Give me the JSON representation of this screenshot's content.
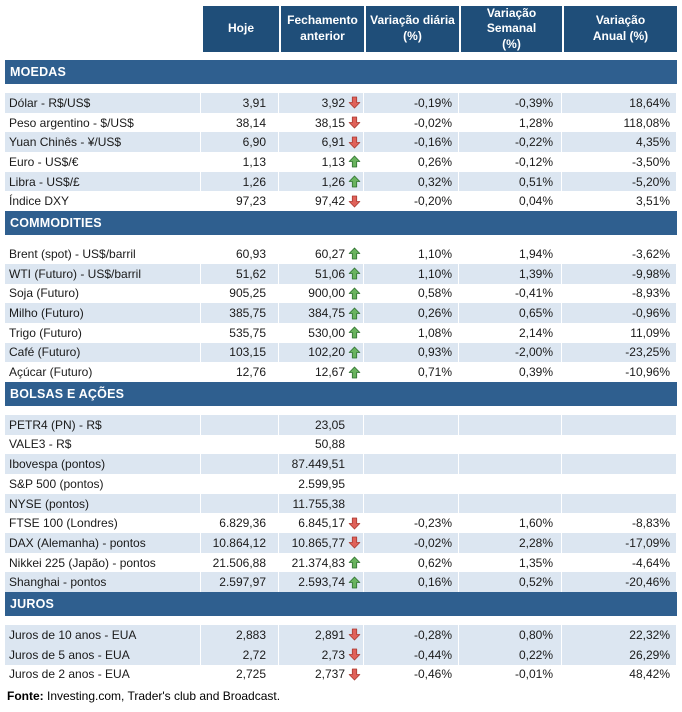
{
  "header": {
    "columns": [
      {
        "label": "Hoje"
      },
      {
        "label": "Fechamento\nanterior"
      },
      {
        "label": "Variação diária\n(%)"
      },
      {
        "label": "Variação Semanal\n(%)"
      },
      {
        "label": "Variação\nAnual (%)"
      }
    ]
  },
  "colors": {
    "header_bg": "#1F4E79",
    "section_bg": "#2F5F8F",
    "row_alt_bg": "#DCE6F1",
    "up_arrow": "#69B35E",
    "up_arrow_border": "#2E7031",
    "down_arrow": "#E0625A",
    "down_arrow_border": "#A93A32"
  },
  "sections": [
    {
      "title": "MOEDAS",
      "rows": [
        {
          "label": "Dólar - R$/US$",
          "hoje": "3,91",
          "fechamento": "3,92",
          "arrow": "down",
          "diaria": "-0,19%",
          "semanal": "-0,39%",
          "anual": "18,64%",
          "shaded": true
        },
        {
          "label": "Peso argentino - $/US$",
          "hoje": "38,14",
          "fechamento": "38,15",
          "arrow": "down",
          "diaria": "-0,02%",
          "semanal": "1,28%",
          "anual": "118,08%",
          "shaded": false
        },
        {
          "label": "Yuan Chinês - ¥/US$",
          "hoje": "6,90",
          "fechamento": "6,91",
          "arrow": "down",
          "diaria": "-0,16%",
          "semanal": "-0,22%",
          "anual": "4,35%",
          "shaded": true
        },
        {
          "label": "Euro - US$/€",
          "hoje": "1,13",
          "fechamento": "1,13",
          "arrow": "up",
          "diaria": "0,26%",
          "semanal": "-0,12%",
          "anual": "-3,50%",
          "shaded": false
        },
        {
          "label": "Libra - US$/£",
          "hoje": "1,26",
          "fechamento": "1,26",
          "arrow": "up",
          "diaria": "0,32%",
          "semanal": "0,51%",
          "anual": "-5,20%",
          "shaded": true
        },
        {
          "label": "Índice DXY",
          "hoje": "97,23",
          "fechamento": "97,42",
          "arrow": "down",
          "diaria": "-0,20%",
          "semanal": "0,04%",
          "anual": "3,51%",
          "shaded": false
        }
      ]
    },
    {
      "title": "COMMODITIES",
      "rows": [
        {
          "label": "Brent (spot) - US$/barril",
          "hoje": "60,93",
          "fechamento": "60,27",
          "arrow": "up",
          "diaria": "1,10%",
          "semanal": "1,94%",
          "anual": "-3,62%",
          "shaded": false
        },
        {
          "label": "WTI (Futuro) - US$/barril",
          "hoje": "51,62",
          "fechamento": "51,06",
          "arrow": "up",
          "diaria": "1,10%",
          "semanal": "1,39%",
          "anual": "-9,98%",
          "shaded": true
        },
        {
          "label": "Soja (Futuro)",
          "hoje": "905,25",
          "fechamento": "900,00",
          "arrow": "up",
          "diaria": "0,58%",
          "semanal": "-0,41%",
          "anual": "-8,93%",
          "shaded": false
        },
        {
          "label": "Milho (Futuro)",
          "hoje": "385,75",
          "fechamento": "384,75",
          "arrow": "up",
          "diaria": "0,26%",
          "semanal": "0,65%",
          "anual": "-0,96%",
          "shaded": true
        },
        {
          "label": "Trigo (Futuro)",
          "hoje": "535,75",
          "fechamento": "530,00",
          "arrow": "up",
          "diaria": "1,08%",
          "semanal": "2,14%",
          "anual": "11,09%",
          "shaded": false
        },
        {
          "label": "Café (Futuro)",
          "hoje": "103,15",
          "fechamento": "102,20",
          "arrow": "up",
          "diaria": "0,93%",
          "semanal": "-2,00%",
          "anual": "-23,25%",
          "shaded": true
        },
        {
          "label": "Açúcar (Futuro)",
          "hoje": "12,76",
          "fechamento": "12,67",
          "arrow": "up",
          "diaria": "0,71%",
          "semanal": "0,39%",
          "anual": "-10,96%",
          "shaded": false
        }
      ]
    },
    {
      "title": "BOLSAS E AÇÕES",
      "rows": [
        {
          "label": "PETR4 (PN) - R$",
          "hoje": "",
          "fechamento": "23,05",
          "arrow": "none",
          "diaria": "",
          "semanal": "",
          "anual": "",
          "shaded": true
        },
        {
          "label": "VALE3 - R$",
          "hoje": "",
          "fechamento": "50,88",
          "arrow": "none",
          "diaria": "",
          "semanal": "",
          "anual": "",
          "shaded": false
        },
        {
          "label": "Ibovespa (pontos)",
          "hoje": "",
          "fechamento": "87.449,51",
          "arrow": "none",
          "diaria": "",
          "semanal": "",
          "anual": "",
          "shaded": true
        },
        {
          "label": "S&P 500 (pontos)",
          "hoje": "",
          "fechamento": "2.599,95",
          "arrow": "none",
          "diaria": "",
          "semanal": "",
          "anual": "",
          "shaded": false
        },
        {
          "label": "NYSE (pontos)",
          "hoje": "",
          "fechamento": "11.755,38",
          "arrow": "none",
          "diaria": "",
          "semanal": "",
          "anual": "",
          "shaded": true
        },
        {
          "label": "FTSE 100 (Londres)",
          "hoje": "6.829,36",
          "fechamento": "6.845,17",
          "arrow": "down",
          "diaria": "-0,23%",
          "semanal": "1,60%",
          "anual": "-8,83%",
          "shaded": false
        },
        {
          "label": "DAX (Alemanha) - pontos",
          "hoje": "10.864,12",
          "fechamento": "10.865,77",
          "arrow": "down",
          "diaria": "-0,02%",
          "semanal": "2,28%",
          "anual": "-17,09%",
          "shaded": true
        },
        {
          "label": "Nikkei 225 (Japão) - pontos",
          "hoje": "21.506,88",
          "fechamento": "21.374,83",
          "arrow": "up",
          "diaria": "0,62%",
          "semanal": "1,35%",
          "anual": "-4,64%",
          "shaded": false
        },
        {
          "label": "Shanghai - pontos",
          "hoje": "2.597,97",
          "fechamento": "2.593,74",
          "arrow": "up",
          "diaria": "0,16%",
          "semanal": "0,52%",
          "anual": "-20,46%",
          "shaded": true
        }
      ]
    },
    {
      "title": "JUROS",
      "rows": [
        {
          "label": "Juros de 10 anos - EUA",
          "hoje": "2,883",
          "fechamento": "2,891",
          "arrow": "down",
          "diaria": "-0,28%",
          "semanal": "0,80%",
          "anual": "22,32%",
          "shaded": true
        },
        {
          "label": "Juros de 5 anos - EUA",
          "hoje": "2,72",
          "fechamento": "2,73",
          "arrow": "down",
          "diaria": "-0,44%",
          "semanal": "0,22%",
          "anual": "26,29%",
          "shaded": true
        },
        {
          "label": "Juros de 2 anos - EUA",
          "hoje": "2,725",
          "fechamento": "2,737",
          "arrow": "down",
          "diaria": "-0,46%",
          "semanal": "-0,01%",
          "anual": "48,42%",
          "shaded": false
        }
      ]
    }
  ],
  "footer": {
    "source_label": "Fonte:",
    "source_text": " Investing.com, Trader's club and Broadcast."
  }
}
